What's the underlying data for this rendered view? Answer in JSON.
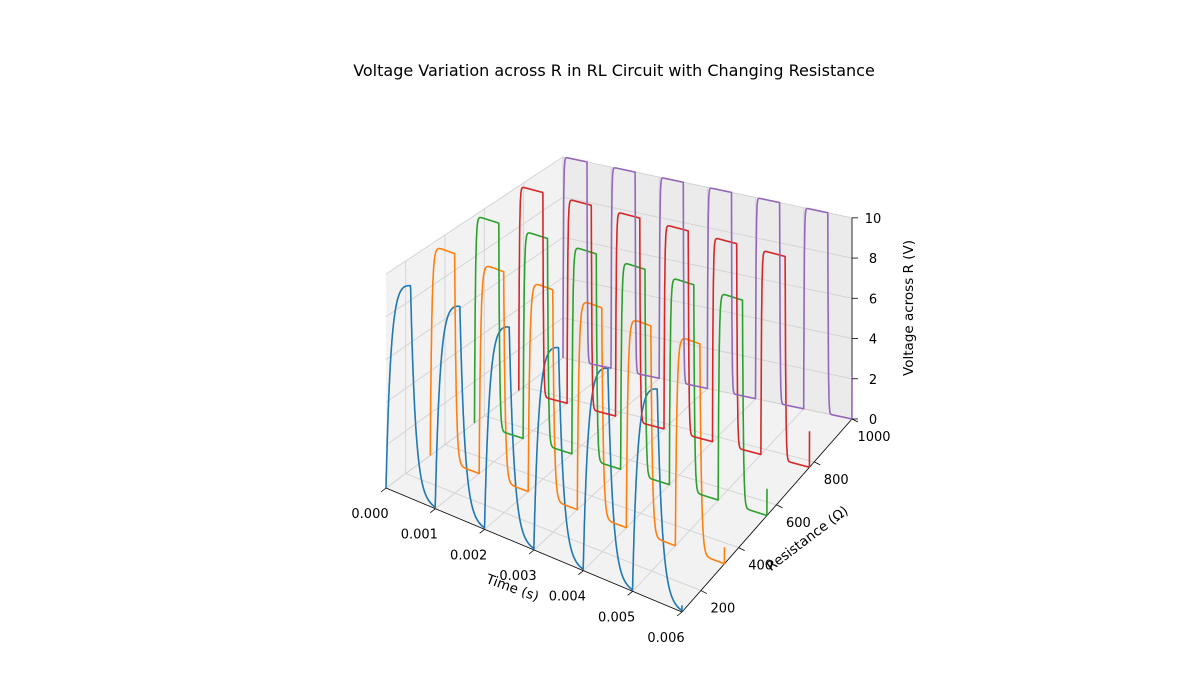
{
  "chart_data": {
    "type": "line-3d",
    "title": "Voltage Variation across R in RL Circuit with Changing Resistance",
    "xlabel": "Time (s)",
    "ylabel": "Resistance (Ω)",
    "zlabel": "Voltage across R (V)",
    "xlim": [
      0,
      0.006
    ],
    "ylim": [
      100,
      1000
    ],
    "zlim": [
      0,
      10
    ],
    "x_ticks": [
      "0.000",
      "0.001",
      "0.002",
      "0.003",
      "0.004",
      "0.005",
      "0.006"
    ],
    "y_ticks": [
      "200",
      "400",
      "600",
      "800",
      "1000"
    ],
    "z_ticks": [
      "0",
      "2",
      "4",
      "6",
      "8",
      "10"
    ],
    "grid": true,
    "signal": {
      "amplitude_V": 10,
      "period_s": 0.001,
      "inductance_H": 0.01,
      "t_end_s": 0.006
    },
    "series": [
      {
        "resistance": 100,
        "color": "#1f77b4"
      },
      {
        "resistance": 325,
        "color": "#ff7f0e"
      },
      {
        "resistance": 550,
        "color": "#2ca02c"
      },
      {
        "resistance": 775,
        "color": "#d62728"
      },
      {
        "resistance": 1000,
        "color": "#9467bd"
      }
    ]
  }
}
